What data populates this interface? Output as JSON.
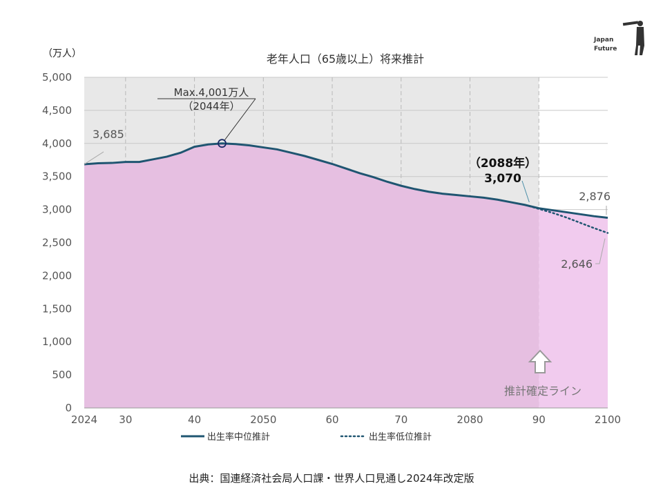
{
  "chart_data": {
    "type": "area",
    "title": "老年人口（65歳以上）将来推計",
    "unit_label": "（万人）",
    "ylim": [
      0,
      5000
    ],
    "yticks": [
      0,
      500,
      1000,
      1500,
      2000,
      2500,
      3000,
      3500,
      4000,
      4500,
      5000
    ],
    "ytick_labels": [
      "0",
      "500",
      "1,000",
      "1,500",
      "2,000",
      "2,500",
      "3,000",
      "3,500",
      "4,000",
      "4,500",
      "5,000"
    ],
    "xlim": [
      2024,
      2100
    ],
    "xticks": [
      2024,
      2030,
      2040,
      2050,
      2060,
      2070,
      2080,
      2090,
      2100
    ],
    "xtick_labels": [
      "2024",
      "30",
      "40",
      "2050",
      "60",
      "70",
      "2080",
      "90",
      "2100"
    ],
    "grid": true,
    "legend_position": "bottom",
    "series": [
      {
        "name": "出生率中位推計",
        "color": "#1f5571",
        "style": "solid",
        "x": [
          2024,
          2026,
          2028,
          2030,
          2032,
          2034,
          2036,
          2038,
          2040,
          2042,
          2044,
          2046,
          2048,
          2050,
          2052,
          2054,
          2056,
          2058,
          2060,
          2062,
          2064,
          2066,
          2068,
          2070,
          2072,
          2074,
          2076,
          2078,
          2080,
          2082,
          2084,
          2086,
          2088,
          2090,
          2092,
          2094,
          2096,
          2098,
          2100
        ],
        "values": [
          3685,
          3700,
          3705,
          3720,
          3720,
          3760,
          3800,
          3860,
          3950,
          3985,
          4001,
          3990,
          3970,
          3940,
          3910,
          3860,
          3810,
          3750,
          3690,
          3620,
          3550,
          3490,
          3420,
          3360,
          3310,
          3270,
          3240,
          3220,
          3200,
          3180,
          3150,
          3110,
          3070,
          3020,
          2990,
          2960,
          2930,
          2900,
          2876
        ]
      },
      {
        "name": "出生率低位推計",
        "color": "#1f5571",
        "style": "dotted",
        "x": [
          2088,
          2090,
          2092,
          2094,
          2096,
          2098,
          2100
        ],
        "values": [
          3070,
          3010,
          2950,
          2880,
          2800,
          2720,
          2646
        ]
      }
    ],
    "annotations": {
      "start": {
        "label": "3,685"
      },
      "max_line1": "Max.4,001万人",
      "max_line2": "（2044年）",
      "y2088_line1": "（2088年）",
      "y2088_line2": "3,070",
      "end_mid": {
        "label": "2,876"
      },
      "end_low": {
        "label": "2,646"
      },
      "confirm_line": "推計確定ライン"
    },
    "colors": {
      "area_fill": "#e6bfe1",
      "area_fill_future": "#f1cbee",
      "bg_shade": "#e8e8e8",
      "grid": "#c8c8c8",
      "line": "#1f5571"
    }
  },
  "logo": {
    "line1": "Japan",
    "line2": "Future"
  },
  "source": "出典：国連経済社会局人口課・世界人口見通し2024年改定版"
}
